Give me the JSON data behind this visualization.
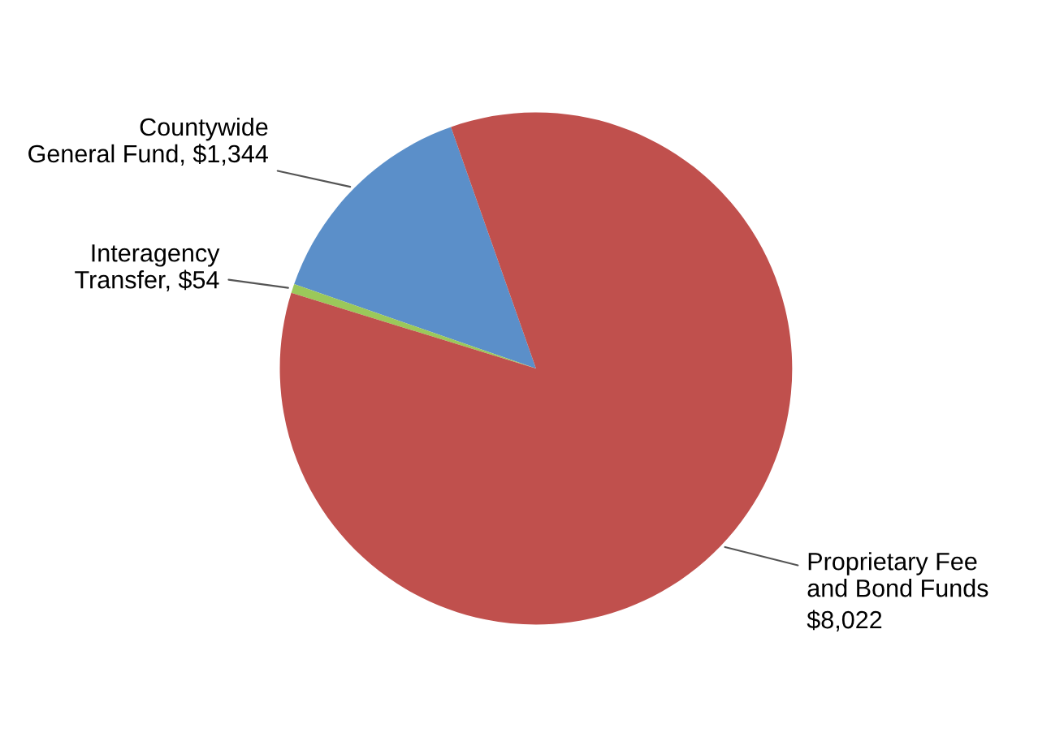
{
  "chart_data": {
    "type": "pie",
    "categories": [
      "Countywide General Fund",
      "Interagency Transfer",
      "Proprietary Fee and Bond Funds"
    ],
    "values": [
      1344,
      54,
      8022
    ],
    "value_labels": [
      "$1,344",
      "$54",
      "$8,022"
    ],
    "colors": [
      "#5b8fc9",
      "#9bc85a",
      "#c0504d"
    ]
  }
}
